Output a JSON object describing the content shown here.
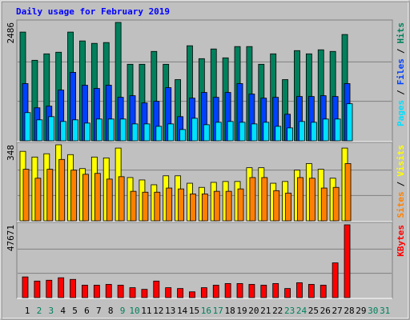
{
  "legend_separator": "/",
  "chart_data": [
    {
      "type": "bar",
      "title": "Daily usage for February 2019",
      "ylim": [
        0,
        2486
      ],
      "yticks": [
        2486
      ],
      "series": [
        {
          "name": "Hits",
          "color": "#00805c",
          "values": [
            2283,
            1691,
            1826,
            1860,
            2283,
            2097,
            2046,
            2063,
            2486,
            1607,
            1607,
            1877,
            1607,
            1285,
            1996,
            1725,
            1928,
            1742,
            1979,
            1979,
            1607,
            1826,
            1285,
            1894,
            1826,
            1911,
            1877,
            2232,
            null,
            null,
            null
          ]
        },
        {
          "name": "Files",
          "color": "#0040ff",
          "values": [
            1201,
            693,
            727,
            1065,
            1437,
            1167,
            1099,
            1167,
            913,
            947,
            795,
            829,
            1116,
            507,
            896,
            1015,
            913,
            1015,
            1201,
            981,
            896,
            913,
            558,
            930,
            930,
            947,
            930,
            1201,
            null,
            null,
            null
          ]
        },
        {
          "name": "Pages",
          "color": "#00e0ff",
          "values": [
            592,
            440,
            507,
            406,
            440,
            372,
            457,
            457,
            457,
            355,
            355,
            304,
            355,
            237,
            473,
            338,
            389,
            406,
            389,
            355,
            389,
            304,
            271,
            406,
            389,
            457,
            457,
            778,
            null,
            null,
            null
          ]
        }
      ]
    },
    {
      "type": "bar",
      "ylim": [
        0,
        348
      ],
      "yticks": [
        348
      ],
      "series": [
        {
          "name": "Visits",
          "color": "#ffff00",
          "values": [
            318,
            292,
            307,
            348,
            303,
            239,
            292,
            288,
            333,
            198,
            187,
            165,
            206,
            206,
            172,
            153,
            176,
            180,
            180,
            243,
            243,
            172,
            180,
            232,
            262,
            236,
            195,
            333,
            null,
            null,
            null
          ]
        },
        {
          "name": "Sites",
          "color": "#ff8000",
          "values": [
            236,
            195,
            236,
            281,
            232,
            213,
            217,
            191,
            202,
            135,
            131,
            131,
            150,
            146,
            123,
            123,
            135,
            135,
            146,
            198,
            198,
            138,
            127,
            198,
            195,
            150,
            153,
            262,
            null,
            null,
            null
          ]
        }
      ]
    },
    {
      "type": "bar",
      "ylim": [
        0,
        47671
      ],
      "yticks": [
        47671
      ],
      "categories": [
        "1",
        "2",
        "3",
        "4",
        "5",
        "6",
        "7",
        "8",
        "9",
        "10",
        "11",
        "12",
        "13",
        "14",
        "15",
        "16",
        "17",
        "18",
        "19",
        "20",
        "21",
        "22",
        "23",
        "24",
        "25",
        "26",
        "27",
        "28",
        "29",
        "30",
        "31"
      ],
      "category_colors": [
        "#000000",
        "#00805c",
        "#00805c",
        "#000000",
        "#000000",
        "#000000",
        "#000000",
        "#000000",
        "#00805c",
        "#00805c",
        "#000000",
        "#000000",
        "#000000",
        "#000000",
        "#000000",
        "#00805c",
        "#00805c",
        "#000000",
        "#000000",
        "#000000",
        "#000000",
        "#000000",
        "#00805c",
        "#00805c",
        "#000000",
        "#000000",
        "#000000",
        "#000000",
        "#000000",
        "#00805c",
        "#00805c"
      ],
      "series": [
        {
          "name": "KBytes",
          "color": "#ff0000",
          "values": [
            13543,
            10834,
            11376,
            13001,
            11917,
            8126,
            8126,
            8667,
            8126,
            6500,
            5417,
            10834,
            6500,
            5959,
            3792,
            6500,
            8126,
            9209,
            9209,
            8667,
            8126,
            9209,
            5959,
            9751,
            8667,
            8126,
            22752,
            47671,
            null,
            null,
            null
          ]
        }
      ]
    }
  ]
}
